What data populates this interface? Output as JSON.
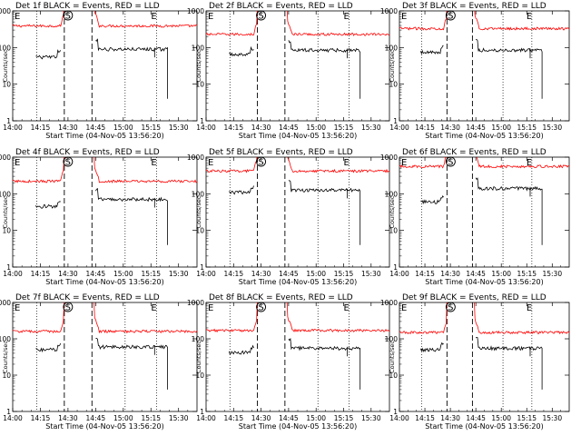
{
  "chart_data": {
    "type": "line",
    "layout": "3x3 grid",
    "xlabel": "Start Time (04-Nov-05 13:56:20)",
    "ylabel": "Counts/sec",
    "x_tick_labels": [
      "14:00",
      "14:15",
      "14:30",
      "14:45",
      "15:00",
      "15:15",
      "15:30"
    ],
    "x_tick_minutes": [
      0,
      15,
      30,
      45,
      60,
      75,
      90
    ],
    "xlim_minutes": [
      0,
      100
    ],
    "y_scale": "log",
    "ylim": [
      1,
      1000
    ],
    "y_tick_labels": [
      "1",
      "10",
      "100",
      "1000"
    ],
    "y_tick_values": [
      1,
      10,
      100,
      1000
    ],
    "vertical_lines": {
      "dotted_minutes": [
        13,
        61,
        78
      ],
      "dashed_minutes": [
        28,
        43
      ]
    },
    "markers": {
      "start": "S",
      "end": "E",
      "events_text": "E"
    },
    "series_colors": {
      "events": "#000000",
      "lld": "#ff0000"
    },
    "panels": [
      {
        "title": "Det 1f BLACK = Events, RED = LLD",
        "lld_level": 390,
        "lld_high": 1500,
        "events_level": 55,
        "events_after": 90
      },
      {
        "title": "Det 2f BLACK = Events, RED = LLD",
        "lld_level": 230,
        "lld_high": 1400,
        "events_level": 65,
        "events_after": 85
      },
      {
        "title": "Det 3f BLACK = Events, RED = LLD",
        "lld_level": 330,
        "lld_high": 1500,
        "events_level": 75,
        "events_after": 85
      },
      {
        "title": "Det 4f BLACK = Events, RED = LLD",
        "lld_level": 220,
        "lld_high": 1300,
        "events_level": 45,
        "events_after": 70
      },
      {
        "title": "Det 5f BLACK = Events, RED = LLD",
        "lld_level": 420,
        "lld_high": 1600,
        "events_level": 110,
        "events_after": 125
      },
      {
        "title": "Det 6f BLACK = Events, RED = LLD",
        "lld_level": 560,
        "lld_high": 1700,
        "events_level": 60,
        "events_after": 140
      },
      {
        "title": "Det 7f BLACK = Events, RED = LLD",
        "lld_level": 160,
        "lld_high": 1300,
        "events_level": 50,
        "events_after": 60
      },
      {
        "title": "Det 8f BLACK = Events, RED = LLD",
        "lld_level": 170,
        "lld_high": 1300,
        "events_level": 42,
        "events_after": 55
      },
      {
        "title": "Det 9f BLACK = Events, RED = LLD",
        "lld_level": 150,
        "lld_high": 1300,
        "events_level": 50,
        "events_after": 55
      }
    ]
  }
}
